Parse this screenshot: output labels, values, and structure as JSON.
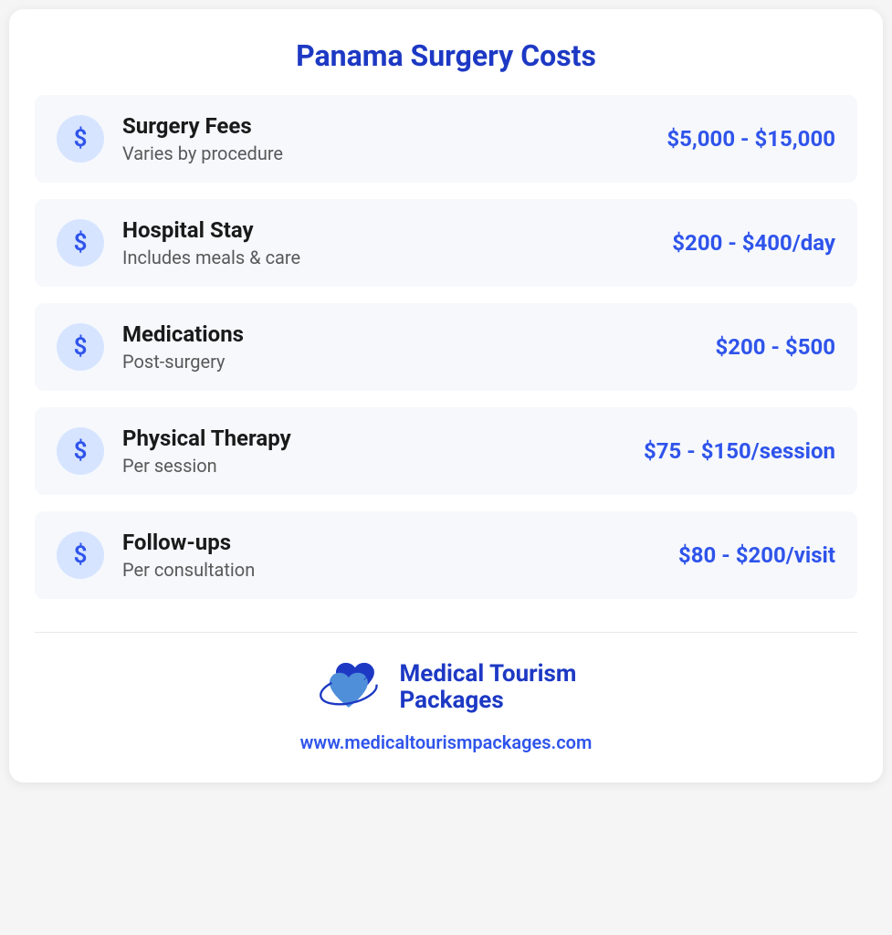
{
  "title": "Panama Surgery Costs",
  "icon_glyph": "$",
  "colors": {
    "title_color": "#1d39c4",
    "price_color": "#2f54eb",
    "label_color": "#1a1a1a",
    "desc_color": "#595959",
    "icon_bg": "#d6e4ff",
    "icon_fg": "#2f54eb",
    "item_bg": "#f6f8fc",
    "card_bg": "#ffffff",
    "brand_color": "#1d39c4",
    "website_color": "#2f54eb",
    "logo_dark": "#1d39c4",
    "logo_light": "#4f8fd9"
  },
  "typography": {
    "title_fontsize": 32,
    "label_fontsize": 24,
    "desc_fontsize": 20,
    "price_fontsize": 24,
    "brand_fontsize": 26,
    "website_fontsize": 20
  },
  "items": [
    {
      "label": "Surgery Fees",
      "desc": "Varies by procedure",
      "price": "$5,000 - $15,000"
    },
    {
      "label": "Hospital Stay",
      "desc": "Includes meals & care",
      "price": "$200 - $400/day"
    },
    {
      "label": "Medications",
      "desc": "Post-surgery",
      "price": "$200 - $500"
    },
    {
      "label": "Physical Therapy",
      "desc": "Per session",
      "price": "$75 - $150/session"
    },
    {
      "label": "Follow-ups",
      "desc": "Per consultation",
      "price": "$80 - $200/visit"
    }
  ],
  "brand": {
    "line1": "Medical Tourism",
    "line2": "Packages"
  },
  "website": "www.medicaltourismpackages.com"
}
